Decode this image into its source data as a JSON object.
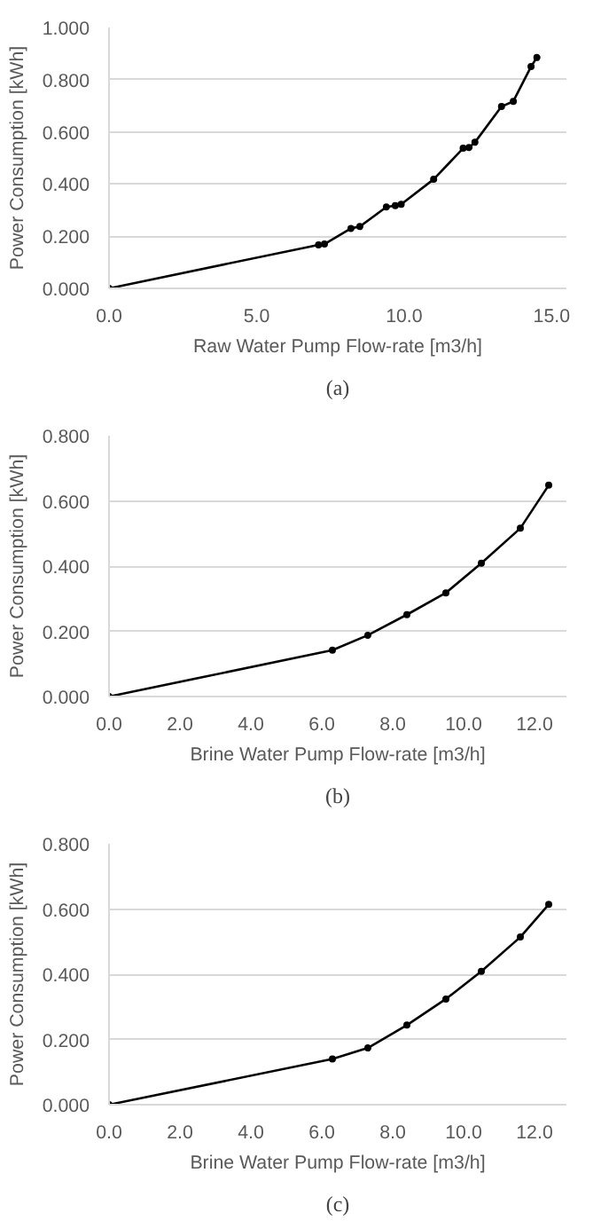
{
  "chart_data": [
    {
      "type": "line",
      "xlabel": "Raw Water Pump Flow-rate [m3/h]",
      "ylabel": "Power Consumption [kWh]",
      "annotations": [
        "(a)"
      ],
      "x": [
        0,
        7.1,
        7.3,
        8.2,
        8.5,
        9.4,
        9.7,
        9.9,
        11.0,
        12.0,
        12.2,
        12.4,
        13.3,
        13.7,
        14.3,
        14.5
      ],
      "series": [
        {
          "color": "#000000",
          "values": [
            0,
            0.167,
            0.17,
            0.23,
            0.237,
            0.312,
            0.317,
            0.322,
            0.418,
            0.537,
            0.54,
            0.56,
            0.697,
            0.717,
            0.85,
            0.885
          ]
        }
      ],
      "xlim": [
        0,
        15.5
      ],
      "xticks": [
        {
          "value": 0,
          "label": "0.0"
        },
        {
          "value": 5,
          "label": "5.0"
        },
        {
          "value": 10,
          "label": "10.0"
        },
        {
          "value": 15,
          "label": "15.0"
        }
      ],
      "ylim": [
        0,
        1
      ],
      "yticks": [
        {
          "value": 0,
          "label": "0.000"
        },
        {
          "value": 0.2,
          "label": "0.200"
        },
        {
          "value": 0.4,
          "label": "0.400"
        },
        {
          "value": 0.6,
          "label": "0.600"
        },
        {
          "value": 0.8,
          "label": "0.800"
        },
        {
          "value": 1,
          "label": "1.000"
        }
      ],
      "grid": "y",
      "marker": "circle",
      "line_style": "solid"
    },
    {
      "type": "line",
      "xlabel": "Brine Water Pump Flow-rate [m3/h]",
      "ylabel": "Power Consumption [kWh]",
      "annotations": [
        "(b)"
      ],
      "x": [
        0,
        6.3,
        7.3,
        8.4,
        9.5,
        10.5,
        11.6,
        12.4
      ],
      "series": [
        {
          "color": "#000000",
          "values": [
            0,
            0.142,
            0.188,
            0.251,
            0.318,
            0.409,
            0.516,
            0.648
          ]
        }
      ],
      "xlim": [
        0,
        12.9
      ],
      "xticks": [
        {
          "value": 0,
          "label": "0.0"
        },
        {
          "value": 2,
          "label": "2.0"
        },
        {
          "value": 4,
          "label": "4.0"
        },
        {
          "value": 6,
          "label": "6.0"
        },
        {
          "value": 8,
          "label": "8.0"
        },
        {
          "value": 10,
          "label": "10.0"
        },
        {
          "value": 12,
          "label": "12.0"
        }
      ],
      "ylim": [
        0,
        0.8
      ],
      "yticks": [
        {
          "value": 0,
          "label": "0.000"
        },
        {
          "value": 0.2,
          "label": "0.200"
        },
        {
          "value": 0.4,
          "label": "0.400"
        },
        {
          "value": 0.6,
          "label": "0.600"
        },
        {
          "value": 0.8,
          "label": "0.800"
        }
      ],
      "grid": "y",
      "marker": "circle",
      "line_style": "solid"
    },
    {
      "type": "line",
      "xlabel": "Brine Water Pump Flow-rate [m3/h]",
      "ylabel": "Power Consumption [kWh]",
      "annotations": [
        "(c)"
      ],
      "x": [
        0,
        6.3,
        7.3,
        8.4,
        9.5,
        10.5,
        11.6,
        12.4
      ],
      "series": [
        {
          "color": "#000000",
          "values": [
            0,
            0.14,
            0.174,
            0.244,
            0.324,
            0.409,
            0.514,
            0.614
          ]
        }
      ],
      "xlim": [
        0,
        12.9
      ],
      "xticks": [
        {
          "value": 0,
          "label": "0.0"
        },
        {
          "value": 2,
          "label": "2.0"
        },
        {
          "value": 4,
          "label": "4.0"
        },
        {
          "value": 6,
          "label": "6.0"
        },
        {
          "value": 8,
          "label": "8.0"
        },
        {
          "value": 10,
          "label": "10.0"
        },
        {
          "value": 12,
          "label": "12.0"
        }
      ],
      "ylim": [
        0,
        0.8
      ],
      "yticks": [
        {
          "value": 0,
          "label": "0.000"
        },
        {
          "value": 0.2,
          "label": "0.200"
        },
        {
          "value": 0.4,
          "label": "0.400"
        },
        {
          "value": 0.6,
          "label": "0.600"
        },
        {
          "value": 0.8,
          "label": "0.800"
        }
      ],
      "grid": "y",
      "marker": "circle",
      "line_style": "solid"
    }
  ]
}
